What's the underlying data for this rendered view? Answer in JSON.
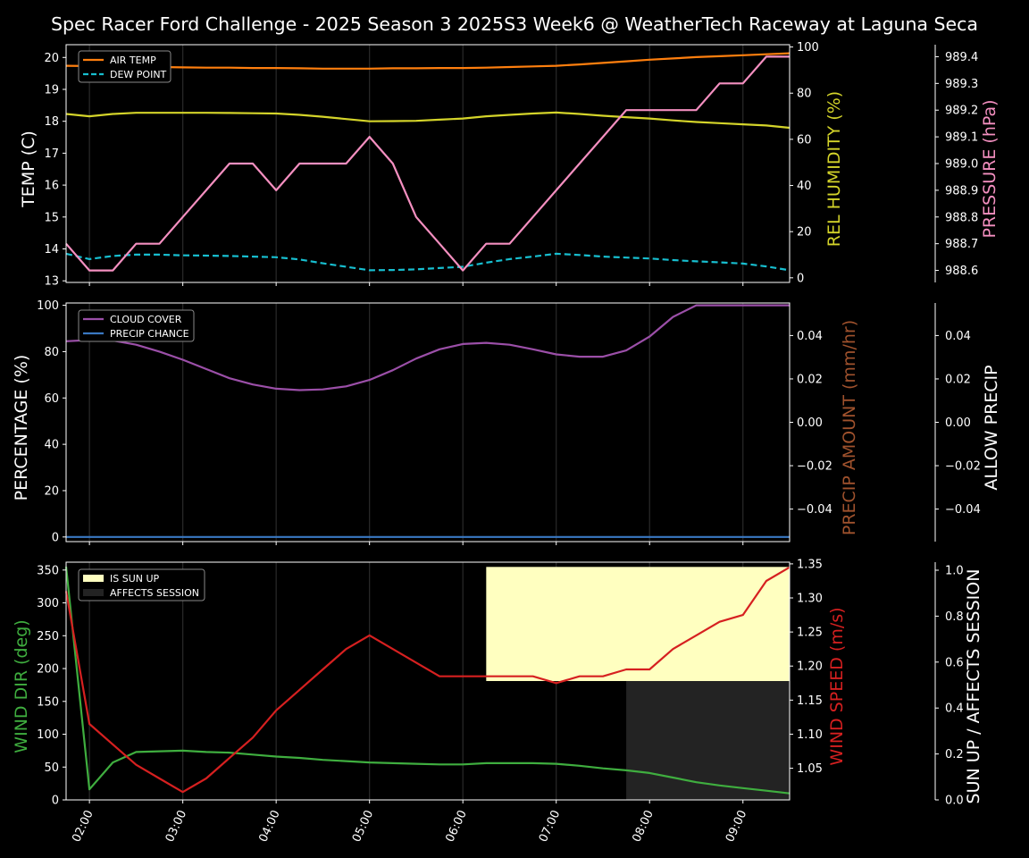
{
  "title": "Spec Racer Ford Challenge - 2025 Season 3 2025S3 Week6 @ WeatherTech Raceway at Laguna Seca",
  "time_ticks": [
    "02:00",
    "03:00",
    "04:00",
    "05:00",
    "06:00",
    "07:00",
    "08:00",
    "09:00"
  ],
  "chart_data": [
    {
      "type": "line",
      "name": "temperature-humidity-pressure",
      "x": [
        1.75,
        2.0,
        2.25,
        2.5,
        2.75,
        3.0,
        3.25,
        3.5,
        3.75,
        4.0,
        4.25,
        4.5,
        4.75,
        5.0,
        5.25,
        5.5,
        5.75,
        6.0,
        6.25,
        6.5,
        6.75,
        7.0,
        7.25,
        7.5,
        7.75,
        8.0,
        8.25,
        8.5,
        8.75,
        9.0,
        9.25,
        9.5
      ],
      "xlim": [
        1.75,
        9.5
      ],
      "left_axis": {
        "label": "TEMP (C)",
        "color": "#ffffff",
        "ylim": [
          12.95,
          20.4
        ],
        "ticks": [
          13,
          14,
          15,
          16,
          17,
          18,
          19,
          20
        ]
      },
      "right_axis": {
        "label": "REL HUMIDITY (%)",
        "color": "#d4d42a",
        "ylim": [
          -2,
          101
        ],
        "ticks": [
          0,
          20,
          40,
          60,
          80,
          100
        ]
      },
      "far_right_axis": {
        "label": "PRESSURE (hPa)",
        "color": "#f48fc0",
        "ylim": [
          988.555,
          989.445
        ],
        "ticks": [
          "988.6",
          "988.7",
          "988.8",
          "988.9",
          "989.0",
          "989.1",
          "989.2",
          "989.3",
          "989.4"
        ]
      },
      "series": [
        {
          "name": "AIR TEMP",
          "axis": "left",
          "color": "#ff7f0e",
          "dash": "solid",
          "in_legend": true,
          "values": [
            19.74,
            19.73,
            19.72,
            19.71,
            19.7,
            19.69,
            19.68,
            19.68,
            19.67,
            19.67,
            19.66,
            19.65,
            19.65,
            19.65,
            19.66,
            19.66,
            19.67,
            19.67,
            19.68,
            19.7,
            19.72,
            19.74,
            19.78,
            19.83,
            19.88,
            19.93,
            19.97,
            20.01,
            20.04,
            20.07,
            20.1,
            20.13
          ]
        },
        {
          "name": "DEW POINT",
          "axis": "left",
          "color": "#17becf",
          "dash": "dashed",
          "in_legend": true,
          "values": [
            13.85,
            13.68,
            13.78,
            13.82,
            13.82,
            13.8,
            13.79,
            13.78,
            13.76,
            13.74,
            13.67,
            13.55,
            13.44,
            13.33,
            13.34,
            13.36,
            13.4,
            13.44,
            13.57,
            13.68,
            13.76,
            13.85,
            13.81,
            13.76,
            13.73,
            13.7,
            13.65,
            13.61,
            13.58,
            13.54,
            13.45,
            13.33
          ]
        },
        {
          "name": "REL HUMIDITY",
          "axis": "right",
          "color": "#d4d42a",
          "dash": "solid",
          "in_legend": false,
          "values": [
            71,
            70,
            71,
            71.5,
            71.5,
            71.5,
            71.5,
            71.4,
            71.3,
            71.2,
            70.6,
            69.8,
            68.8,
            67.8,
            67.9,
            68.0,
            68.5,
            69.0,
            70.0,
            70.6,
            71.2,
            71.6,
            71.0,
            70.2,
            69.6,
            69.0,
            68.2,
            67.5,
            67.0,
            66.5,
            66.0,
            65.0
          ]
        },
        {
          "name": "PRESSURE",
          "axis": "far_right",
          "color": "#f48fc0",
          "dash": "solid",
          "in_legend": false,
          "values": [
            988.7,
            988.6,
            988.6,
            988.7,
            988.7,
            988.8,
            988.9,
            989.0,
            989.0,
            988.9,
            989.0,
            989.0,
            989.0,
            989.1,
            989.0,
            988.8,
            988.7,
            988.6,
            988.7,
            988.7,
            988.8,
            988.9,
            989.0,
            989.1,
            989.2,
            989.2,
            989.2,
            989.2,
            989.3,
            989.3,
            989.4,
            989.4
          ]
        }
      ],
      "legend": "top-left"
    },
    {
      "type": "line",
      "name": "cloud-precip",
      "x": [
        1.75,
        2.0,
        2.25,
        2.5,
        2.75,
        3.0,
        3.25,
        3.5,
        3.75,
        4.0,
        4.25,
        4.5,
        4.75,
        5.0,
        5.25,
        5.5,
        5.75,
        6.0,
        6.25,
        6.5,
        6.75,
        7.0,
        7.25,
        7.5,
        7.75,
        8.0,
        8.25,
        8.5,
        8.75,
        9.0,
        9.25,
        9.5
      ],
      "xlim": [
        1.75,
        9.5
      ],
      "left_axis": {
        "label": "PERCENTAGE (%)",
        "color": "#ffffff",
        "ylim": [
          -2,
          101
        ],
        "ticks": [
          0,
          20,
          40,
          60,
          80,
          100
        ]
      },
      "right_axis": {
        "label": "PRECIP AMOUNT (mm/hr)",
        "color": "#a0522d",
        "ylim": [
          -0.055,
          0.055
        ],
        "ticks": [
          "−0.04",
          "−0.02",
          "0.00",
          "0.02",
          "0.04"
        ]
      },
      "far_right_axis": {
        "label": "ALLOW PRECIP",
        "color": "#ffffff",
        "ylim": [
          -0.055,
          0.055
        ],
        "ticks": [
          "−0.04",
          "−0.02",
          "0.00",
          "0.02",
          "0.04"
        ]
      },
      "series": [
        {
          "name": "CLOUD COVER",
          "axis": "left",
          "color": "#9b4fa8",
          "dash": "solid",
          "in_legend": true,
          "values": [
            84.5,
            85.0,
            84.8,
            83.0,
            80.0,
            76.5,
            72.5,
            68.5,
            65.8,
            64.0,
            63.4,
            63.7,
            65.0,
            67.8,
            72.0,
            77.0,
            81.0,
            83.3,
            83.8,
            83.0,
            81.0,
            78.8,
            77.8,
            77.8,
            80.5,
            86.5,
            95.0,
            100,
            100,
            100,
            100,
            100
          ]
        },
        {
          "name": "PRECIP CHANCE",
          "axis": "left",
          "color": "#3a78c2",
          "dash": "solid",
          "in_legend": true,
          "values": [
            0,
            0,
            0,
            0,
            0,
            0,
            0,
            0,
            0,
            0,
            0,
            0,
            0,
            0,
            0,
            0,
            0,
            0,
            0,
            0,
            0,
            0,
            0,
            0,
            0,
            0,
            0,
            0,
            0,
            0,
            0,
            0
          ]
        }
      ],
      "legend": "top-left"
    },
    {
      "type": "line",
      "name": "wind-sun",
      "x": [
        1.75,
        2.0,
        2.25,
        2.5,
        2.75,
        3.0,
        3.25,
        3.5,
        3.75,
        4.0,
        4.25,
        4.5,
        4.75,
        5.0,
        5.25,
        5.5,
        5.75,
        6.0,
        6.25,
        6.5,
        6.75,
        7.0,
        7.25,
        7.5,
        7.75,
        8.0,
        8.25,
        8.5,
        8.75,
        9.0,
        9.25,
        9.5
      ],
      "xlim": [
        1.75,
        9.5
      ],
      "left_axis": {
        "label": "WIND DIR (deg)",
        "color": "#3fae3f",
        "ylim": [
          0,
          362
        ],
        "ticks": [
          0,
          50,
          100,
          150,
          200,
          250,
          300,
          350
        ]
      },
      "right_axis": {
        "label": "WIND SPEED (m/s)",
        "color": "#d62020",
        "ylim": [
          1.0035,
          1.3525
        ],
        "ticks": [
          "1.05",
          "1.10",
          "1.15",
          "1.20",
          "1.25",
          "1.30",
          "1.35"
        ]
      },
      "far_right_axis": {
        "label": "SUN UP / AFFECTS SESSION",
        "color": "#ffffff",
        "ylim": [
          0,
          1.035
        ],
        "ticks": [
          "0.0",
          "0.2",
          "0.4",
          "0.6",
          "0.8",
          "1.0"
        ]
      },
      "series": [
        {
          "name": "WIND DIR",
          "axis": "left",
          "color": "#3fae3f",
          "dash": "solid",
          "in_legend": false,
          "values": [
            355,
            16,
            57,
            73,
            74,
            75,
            73,
            72,
            69,
            66,
            64,
            61,
            59,
            57,
            56,
            55,
            54,
            54,
            56,
            56,
            56,
            55,
            52,
            48,
            45,
            41,
            34,
            27,
            22,
            18,
            14,
            10
          ]
        },
        {
          "name": "WIND SPEED",
          "axis": "right",
          "color": "#d62020",
          "dash": "solid",
          "in_legend": false,
          "values": [
            1.31,
            1.115,
            1.085,
            1.055,
            1.035,
            1.015,
            1.035,
            1.065,
            1.095,
            1.135,
            1.165,
            1.195,
            1.225,
            1.245,
            1.225,
            1.205,
            1.185,
            1.185,
            1.185,
            1.185,
            1.185,
            1.175,
            1.185,
            1.185,
            1.195,
            1.195,
            1.225,
            1.245,
            1.265,
            1.275,
            1.325,
            1.345
          ]
        }
      ],
      "shaded_regions": [
        {
          "name": "IS SUN UP",
          "color": "#ffffc0",
          "x_start": 6.25,
          "x_end": 9.5,
          "y_start": 0.5,
          "y_end": 0.98
        },
        {
          "name": "AFFECTS SESSION",
          "color": "#232323",
          "x_start": 7.75,
          "x_end": 9.5,
          "y_start": 0.0,
          "y_end": 0.5
        }
      ],
      "legend": "top-left"
    }
  ]
}
